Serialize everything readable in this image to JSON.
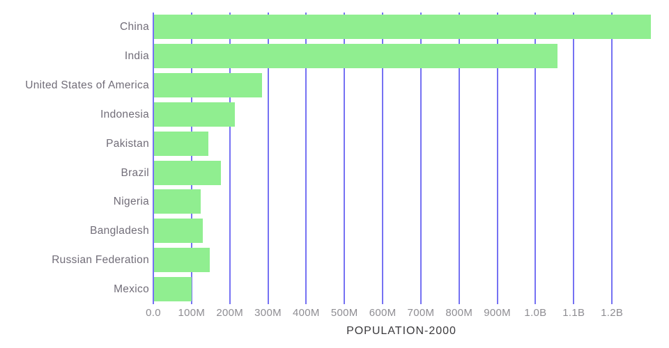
{
  "chart_data": {
    "type": "bar",
    "orientation": "horizontal",
    "title": "",
    "xlabel": "POPULATION-2000",
    "ylabel": "",
    "categories": [
      "China",
      "India",
      "United States of America",
      "Indonesia",
      "Pakistan",
      "Brazil",
      "Nigeria",
      "Bangladesh",
      "Russian Federation",
      "Mexico"
    ],
    "values": [
      1300000000,
      1056000000,
      282000000,
      212000000,
      142000000,
      175000000,
      122000000,
      127000000,
      146000000,
      99000000
    ],
    "xlim": [
      0,
      1300000000
    ],
    "xticks": [
      {
        "value": 0,
        "label": "0.0"
      },
      {
        "value": 100000000,
        "label": "100M"
      },
      {
        "value": 200000000,
        "label": "200M"
      },
      {
        "value": 300000000,
        "label": "300M"
      },
      {
        "value": 400000000,
        "label": "400M"
      },
      {
        "value": 500000000,
        "label": "500M"
      },
      {
        "value": 600000000,
        "label": "600M"
      },
      {
        "value": 700000000,
        "label": "700M"
      },
      {
        "value": 800000000,
        "label": "800M"
      },
      {
        "value": 900000000,
        "label": "900M"
      },
      {
        "value": 1000000000,
        "label": "1.0B"
      },
      {
        "value": 1100000000,
        "label": "1.1B"
      },
      {
        "value": 1200000000,
        "label": "1.2B"
      }
    ],
    "grid": "vertical-full-height",
    "legend": false,
    "colors": {
      "bar": "#90ee90",
      "gridline": "#7571f3",
      "category_label": "#716d78",
      "tick_label": "#8e8d92",
      "axis_title": "#3a393c",
      "background": "#ffffff"
    }
  }
}
